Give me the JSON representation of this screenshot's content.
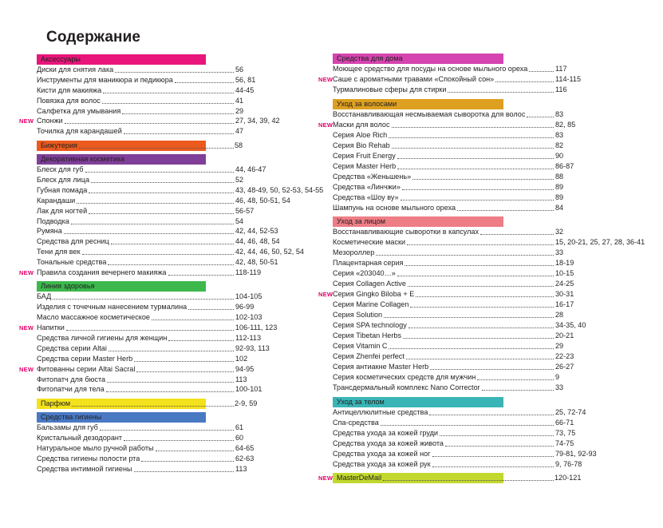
{
  "title": "Содержание",
  "new_label": "NEW",
  "colors": {
    "new_badge": "#e2006a"
  },
  "left_column": [
    {
      "kind": "section",
      "label": "Аксессуары",
      "color": "#e8157b"
    },
    {
      "kind": "entry",
      "label": "Диски для снятия лака",
      "pages": "56"
    },
    {
      "kind": "entry",
      "label": "Инструменты для маникюра и педикюра",
      "pages": "56, 81"
    },
    {
      "kind": "entry",
      "label": "Кисти для макияжа",
      "pages": "44-45"
    },
    {
      "kind": "entry",
      "label": "Повязка для волос",
      "pages": "41"
    },
    {
      "kind": "entry",
      "label": "Салфетка для умывания",
      "pages": "29"
    },
    {
      "kind": "entry",
      "label": "Спонжи",
      "pages": "27, 34, 39, 42",
      "new": true
    },
    {
      "kind": "entry",
      "label": "Точилка для карандашей",
      "pages": "47"
    },
    {
      "kind": "section",
      "label": "Бижутерия",
      "pages": "58",
      "color": "#ec5a1e"
    },
    {
      "kind": "section",
      "label": "Декоративная косметика",
      "color": "#7f3f98"
    },
    {
      "kind": "entry",
      "label": "Блеск для губ",
      "pages": "44, 46-47"
    },
    {
      "kind": "entry",
      "label": "Блеск для лица",
      "pages": "52"
    },
    {
      "kind": "entry",
      "label": "Губная помада",
      "pages": "43, 48-49, 50, 52-53, 54-55"
    },
    {
      "kind": "entry",
      "label": "Карандаши",
      "pages": "46, 48, 50-51, 54"
    },
    {
      "kind": "entry",
      "label": "Лак для ногтей",
      "pages": "56-57"
    },
    {
      "kind": "entry",
      "label": "Подводка",
      "pages": "54"
    },
    {
      "kind": "entry",
      "label": "Румяна",
      "pages": "42, 44, 52-53"
    },
    {
      "kind": "entry",
      "label": "Средства для ресниц",
      "pages": "44, 46, 48, 54"
    },
    {
      "kind": "entry",
      "label": "Тени для век",
      "pages": "42, 44, 46, 50, 52, 54"
    },
    {
      "kind": "entry",
      "label": "Тональные средства",
      "pages": "42, 48, 50-51"
    },
    {
      "kind": "entry",
      "label": "Правила создания вечернего макияжа",
      "pages": "118-119",
      "new": true
    },
    {
      "kind": "section",
      "label": "Линия здоровья",
      "color": "#3db84d"
    },
    {
      "kind": "entry",
      "label": "БАД",
      "pages": "104-105"
    },
    {
      "kind": "entry",
      "label": "Изделия с точечным нанесением турмалина",
      "pages": "96-99"
    },
    {
      "kind": "entry",
      "label": "Масло массажное косметическое",
      "pages": "102-103"
    },
    {
      "kind": "entry",
      "label": "Напитки",
      "pages": "106-111, 123",
      "new": true
    },
    {
      "kind": "entry",
      "label": "Средства личной гигиены для женщин",
      "pages": "112-113"
    },
    {
      "kind": "entry",
      "label": "Средства серии Altai",
      "pages": "92-93, 113"
    },
    {
      "kind": "entry",
      "label": "Средства серии Master Herb",
      "pages": "102"
    },
    {
      "kind": "entry",
      "label": "Фитованны серии Altai Sacral",
      "pages": "94-95",
      "new": true
    },
    {
      "kind": "entry",
      "label": "Фитопатч для бюста",
      "pages": "113"
    },
    {
      "kind": "entry",
      "label": "Фитопатчи для тела",
      "pages": "100-101"
    },
    {
      "kind": "section",
      "label": "Парфюм",
      "pages": "2-9, 59",
      "color": "#f3e21b"
    },
    {
      "kind": "section",
      "label": "Средства гигиены",
      "color": "#4a79c4"
    },
    {
      "kind": "entry",
      "label": "Бальзамы для губ",
      "pages": "61"
    },
    {
      "kind": "entry",
      "label": "Кристальный дезодорант",
      "pages": "60"
    },
    {
      "kind": "entry",
      "label": "Натуральное мыло ручной работы",
      "pages": "64-65"
    },
    {
      "kind": "entry",
      "label": "Средства гигиены полости рта",
      "pages": "62-63"
    },
    {
      "kind": "entry",
      "label": "Средства интимной гигиены",
      "pages": "113"
    }
  ],
  "right_column": [
    {
      "kind": "section",
      "label": "Средства для дома",
      "color": "#d544b0"
    },
    {
      "kind": "entry",
      "label": "Моющее средство для посуды на основе мыльного ореха",
      "pages": "117"
    },
    {
      "kind": "entry",
      "label": "Саше с ароматными травами «Спокойный сон»",
      "pages": "114-115",
      "new": true
    },
    {
      "kind": "entry",
      "label": "Турмалиновые сферы для стирки",
      "pages": "116"
    },
    {
      "kind": "section",
      "label": "Уход за волосами",
      "color": "#dea021"
    },
    {
      "kind": "entry",
      "label": "Восстанавливающая несмываемая сыворотка для волос",
      "pages": "83"
    },
    {
      "kind": "entry",
      "label": "Маски для волос",
      "pages": "82, 85",
      "new": true
    },
    {
      "kind": "entry",
      "label": "Серия Aloe Rich",
      "pages": "83"
    },
    {
      "kind": "entry",
      "label": "Серия Bio Rehab",
      "pages": "82"
    },
    {
      "kind": "entry",
      "label": "Серия Fruit Energy",
      "pages": "90"
    },
    {
      "kind": "entry",
      "label": "Серия Master Herb",
      "pages": "86-87"
    },
    {
      "kind": "entry",
      "label": "Средства «Женьшень»",
      "pages": "88"
    },
    {
      "kind": "entry",
      "label": "Средства «Линчжи»",
      "pages": "89"
    },
    {
      "kind": "entry",
      "label": "Средства «Шоу ву»",
      "pages": "89"
    },
    {
      "kind": "entry",
      "label": "Шампунь на основе мыльного ореха",
      "pages": "84"
    },
    {
      "kind": "section",
      "label": "Уход за лицом",
      "color": "#ee7d86"
    },
    {
      "kind": "entry",
      "label": "Восстанавливающие сыворотки в капсулах",
      "pages": "32"
    },
    {
      "kind": "entry",
      "label": "Косметические маски",
      "pages": "15, 20-21, 25, 27, 28, 36-41"
    },
    {
      "kind": "entry",
      "label": "Мезороллер",
      "pages": "33"
    },
    {
      "kind": "entry",
      "label": "Плацентарная серия",
      "pages": "18-19"
    },
    {
      "kind": "entry",
      "label": "Серия «203040…»",
      "pages": "10-15"
    },
    {
      "kind": "entry",
      "label": "Серия Collagen Active",
      "pages": "24-25"
    },
    {
      "kind": "entry",
      "label": "Серия Gingko Biloba + E",
      "pages": "30-31",
      "new": true
    },
    {
      "kind": "entry",
      "label": "Серия Marine Collagen",
      "pages": "16-17"
    },
    {
      "kind": "entry",
      "label": "Серия Solution",
      "pages": "28"
    },
    {
      "kind": "entry",
      "label": "Серия SPA technology",
      "pages": "34-35, 40"
    },
    {
      "kind": "entry",
      "label": "Серия Tibetan Herbs",
      "pages": "20-21"
    },
    {
      "kind": "entry",
      "label": "Серия Vitamin C",
      "pages": "29"
    },
    {
      "kind": "entry",
      "label": "Серия Zhenfei perfect",
      "pages": "22-23"
    },
    {
      "kind": "entry",
      "label": "Серия антиакне Master Herb",
      "pages": "26-27"
    },
    {
      "kind": "entry",
      "label": "Серия косметических средств для мужчин",
      "pages": "9"
    },
    {
      "kind": "entry",
      "label": "Трансдермальный комплекс Nano Corrector",
      "pages": "33"
    },
    {
      "kind": "section",
      "label": "Уход за телом",
      "color": "#3ab5b7"
    },
    {
      "kind": "entry",
      "label": "Антицеллюлитные средства",
      "pages": "25, 72-74"
    },
    {
      "kind": "entry",
      "label": "Спа-средства",
      "pages": "66-71"
    },
    {
      "kind": "entry",
      "label": "Средства ухода за кожей груди",
      "pages": "73, 75"
    },
    {
      "kind": "entry",
      "label": "Средства ухода за кожей живота",
      "pages": "74-75"
    },
    {
      "kind": "entry",
      "label": "Средства ухода за кожей ног",
      "pages": "79-81, 92-93"
    },
    {
      "kind": "entry",
      "label": "Средства ухода за кожей рук",
      "pages": "9, 76-78"
    },
    {
      "kind": "section",
      "label": "MasterDeMail",
      "pages": "120-121",
      "color": "#c3d82f",
      "new": true
    }
  ]
}
